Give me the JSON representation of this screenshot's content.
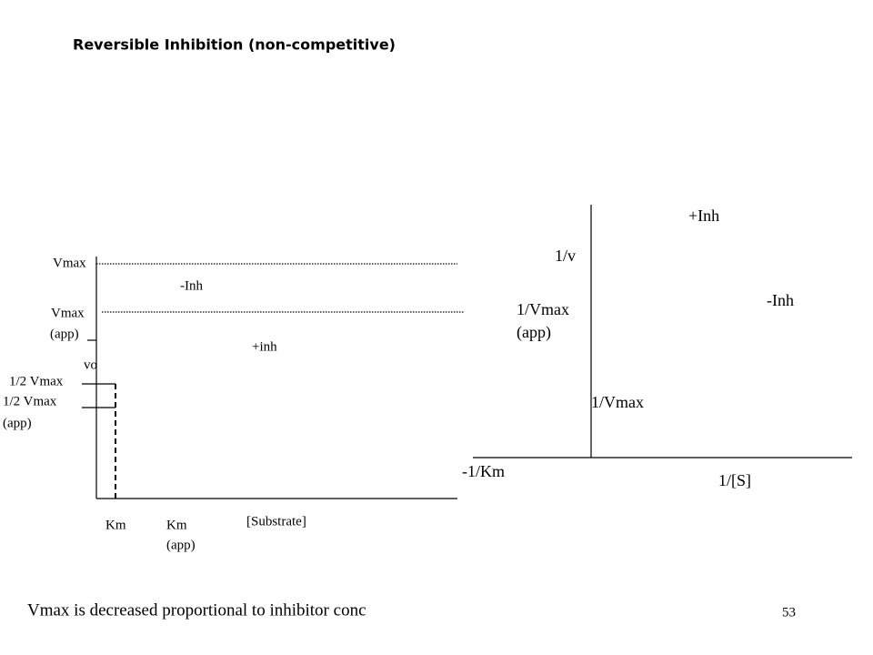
{
  "title": "Reversible Inhibition (non-competitive)",
  "left_plot": {
    "labels": [
      "Vmax",
      "-Inh",
      "Vmax",
      "(app)",
      "+inh",
      "vo",
      "1/2 Vmax",
      "1/2 Vmax",
      "(app)",
      "Km",
      "Km",
      "(app)",
      "[Substrate]"
    ]
  },
  "right_plot": {
    "labels": [
      "+Inh",
      "1/v",
      "1/Vmax",
      "(app)",
      "-Inh",
      "1/Vmax",
      "-1/Km",
      "1/[S]"
    ]
  },
  "footer": {
    "text": "Vmax is decreased proportional to inhibitor conc",
    "page_number": "53"
  }
}
